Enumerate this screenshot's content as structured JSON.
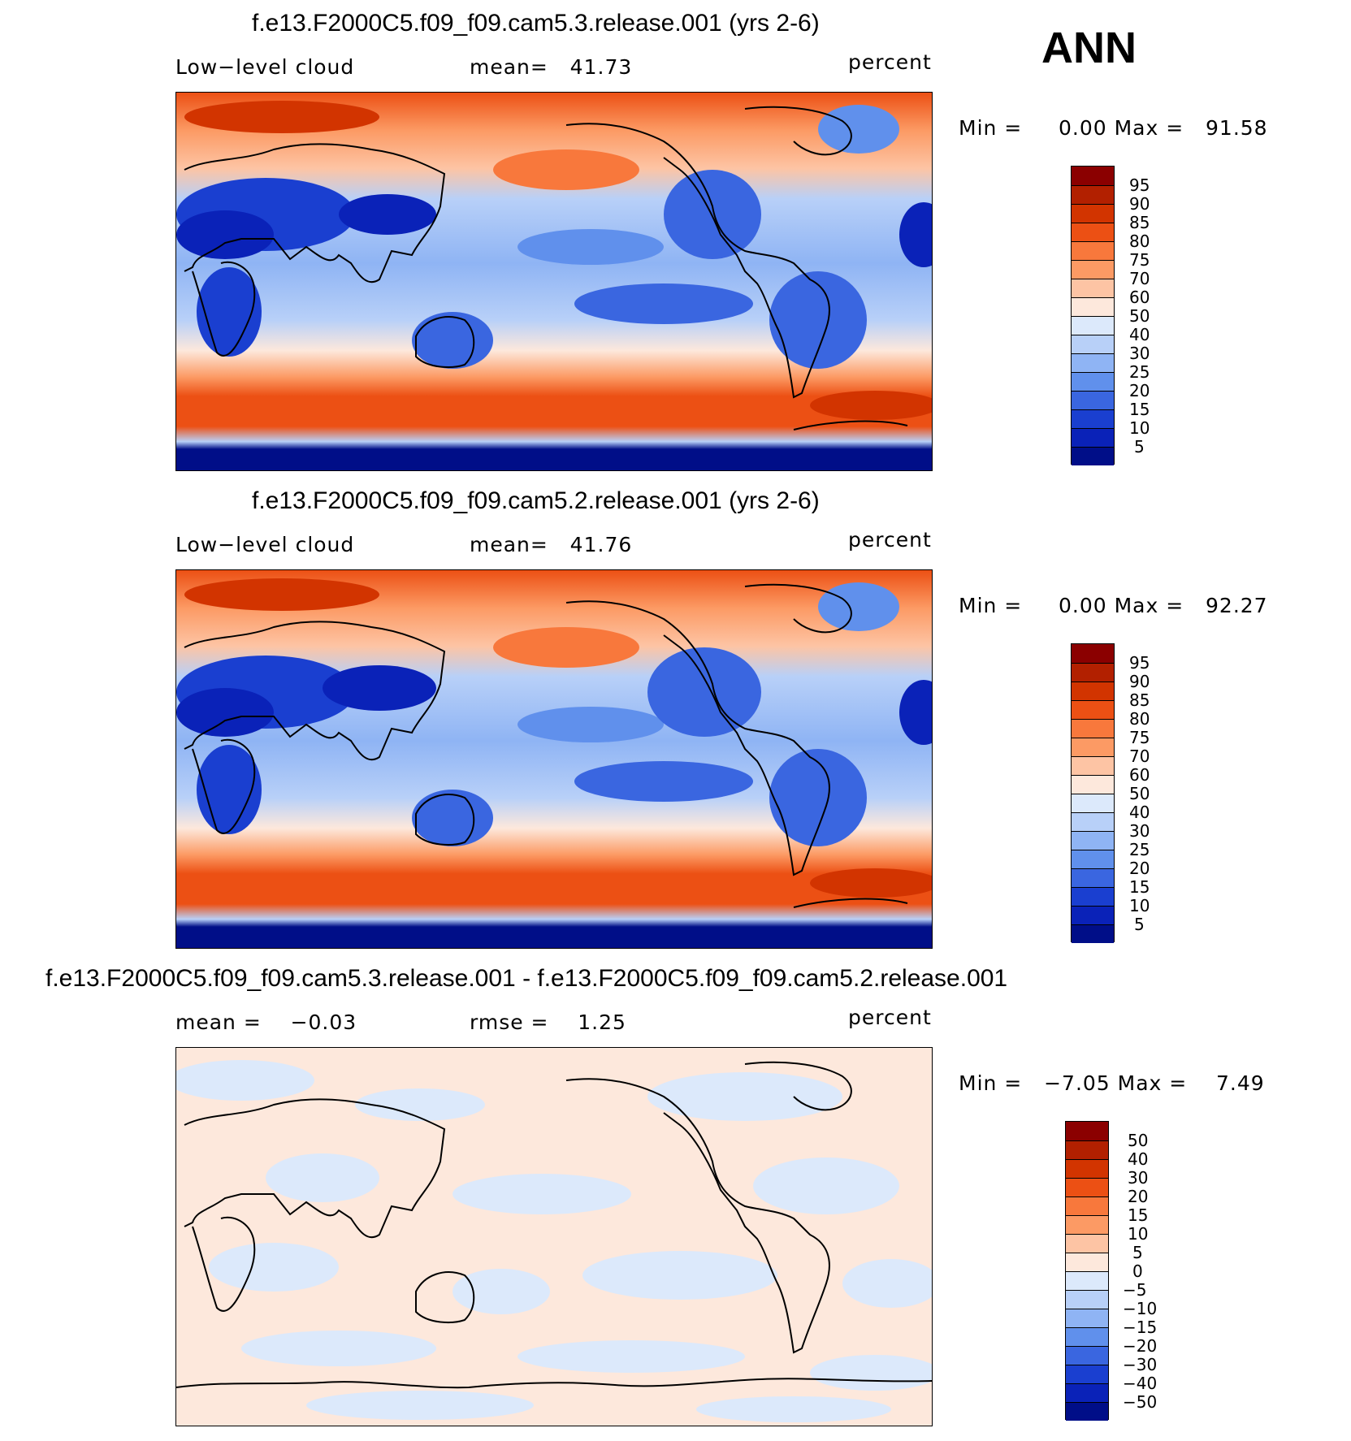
{
  "season": "ANN",
  "panels": [
    {
      "title": "f.e13.F2000C5.f09_f09.cam5.3.release.001 (yrs 2-6)",
      "left_label": "Low−level cloud",
      "mid_label": "mean=   41.73",
      "units": "percent",
      "minmax": "Min =     0.00 Max =   91.58",
      "type": "field"
    },
    {
      "title": "f.e13.F2000C5.f09_f09.cam5.2.release.001 (yrs 2-6)",
      "left_label": "Low−level cloud",
      "mid_label": "mean=   41.76",
      "units": "percent",
      "minmax": "Min =     0.00 Max =   92.27",
      "type": "field"
    },
    {
      "title": "f.e13.F2000C5.f09_f09.cam5.3.release.001 - f.e13.F2000C5.f09_f09.cam5.2.release.001",
      "left_label": "mean =    −0.03",
      "mid_label": "rmse =    1.25",
      "units": "percent",
      "minmax": "Min =   −7.05 Max =    7.49",
      "type": "diff"
    }
  ],
  "colorbars": {
    "field": {
      "levels": [
        "95",
        "90",
        "85",
        "80",
        "75",
        "70",
        "60",
        "50",
        "40",
        "30",
        "25",
        "20",
        "15",
        "10",
        "5"
      ],
      "colors": [
        "#8b0000",
        "#b22000",
        "#d23400",
        "#ec5014",
        "#f8783c",
        "#fc9a64",
        "#fdc4a4",
        "#fde8dc",
        "#dce9fb",
        "#b8d0f8",
        "#8fb4f4",
        "#6090ec",
        "#3a66e0",
        "#1a3fd0",
        "#0a22b8",
        "#000e88"
      ]
    },
    "diff": {
      "levels": [
        "50",
        "40",
        "30",
        "20",
        "15",
        "10",
        "5",
        "0",
        "−5",
        "−10",
        "−15",
        "−20",
        "−30",
        "−40",
        "−50"
      ],
      "colors": [
        "#8b0000",
        "#b22000",
        "#d23400",
        "#ec5014",
        "#f8783c",
        "#fc9a64",
        "#fdc4a4",
        "#fde8dc",
        "#dce9fb",
        "#b8d0f8",
        "#8fb4f4",
        "#6090ec",
        "#3a66e0",
        "#1a3fd0",
        "#0a22b8",
        "#000e88"
      ]
    }
  }
}
